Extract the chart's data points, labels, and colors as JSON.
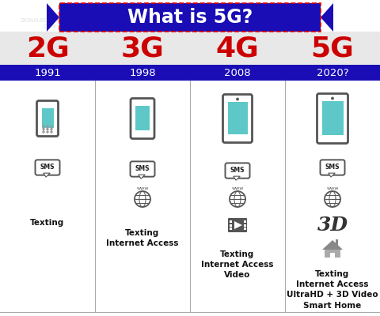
{
  "title": "What is 5G?",
  "title_bg": "#1a0db5",
  "title_color": "#ffffff",
  "bg_color": "#ffffff",
  "header_bg": "#e8e8e8",
  "year_bar_bg": "#1a0db5",
  "year_bar_color": "#ffffff",
  "divider_color": "#aaaaaa",
  "generations": [
    "2G",
    "3G",
    "4G",
    "5G"
  ],
  "gen_color": "#cc0000",
  "years": [
    "1991",
    "1998",
    "2008",
    "2020?"
  ],
  "features": [
    "Texting",
    "Texting\nInternet Access",
    "Texting\nInternet Access\nVideo",
    "Texting\nInternet Access\nUltraHD + 3D Video\nSmart Home"
  ],
  "phone_color": "#5ec8c8",
  "icon_dark": "#555555",
  "icon_gray": "#888888"
}
